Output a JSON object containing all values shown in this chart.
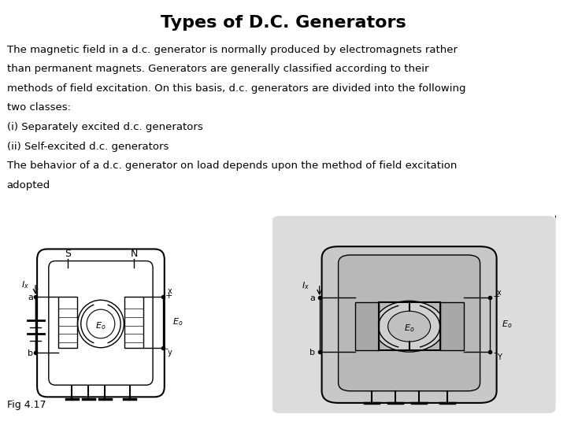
{
  "title": "Types of D.C. Generators",
  "title_fontsize": 16,
  "title_fontweight": "bold",
  "body_lines": [
    "The magnetic field in a d.c. generator is normally produced by electromagnets rather",
    "than permanent magnets. Generators are generally classified according to their",
    "methods of field excitation. On this basis, d.c. generators are divided into the following",
    "two classes:",
    "(i) Separately excited d.c. generators",
    "(ii) Self-excited d.c. generators",
    "The behavior of a d.c. generator on load depends upon the method of field excitation",
    "adopted"
  ],
  "body_fontsize": 9.5,
  "caption": "Fig 4.17",
  "background_color": "#ffffff",
  "text_color": "#000000"
}
